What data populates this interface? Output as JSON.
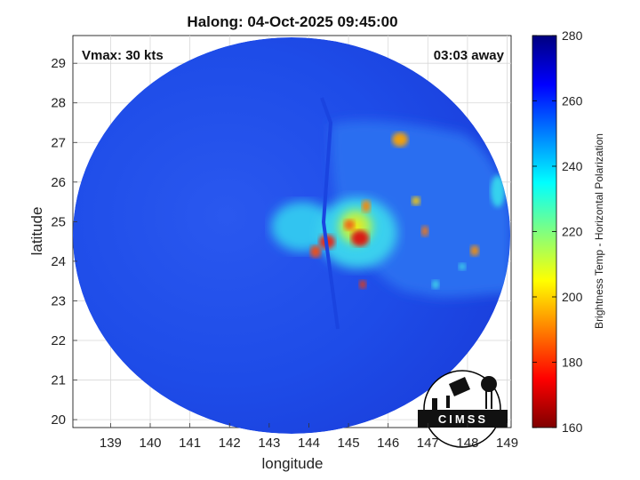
{
  "title": "Halong: 04-Oct-2025 09:45:00",
  "annotations": {
    "vmax": "Vmax: 30 kts",
    "time_away": "03:03 away"
  },
  "axes": {
    "xlabel": "longitude",
    "ylabel": "latitude",
    "x_ticks": [
      "139",
      "140",
      "141",
      "142",
      "143",
      "144",
      "145",
      "146",
      "147",
      "148",
      "149"
    ],
    "y_ticks": [
      "20",
      "21",
      "22",
      "23",
      "24",
      "25",
      "26",
      "27",
      "28",
      "29"
    ],
    "xlim": [
      138.05,
      149.1
    ],
    "ylim": [
      19.8,
      29.7
    ],
    "grid": true
  },
  "colorbar": {
    "label": "Brightness Temp - Horizontal Polarization",
    "ticks": [
      "160",
      "180",
      "200",
      "220",
      "240",
      "260",
      "280"
    ],
    "range": [
      160,
      280
    ],
    "colormap": "jet"
  },
  "logo": {
    "text": "CIMSS"
  },
  "colors": {
    "background_fill": "#1d49e6",
    "cold_core": "#d8191c",
    "warm_halo": "#24d6e6"
  }
}
